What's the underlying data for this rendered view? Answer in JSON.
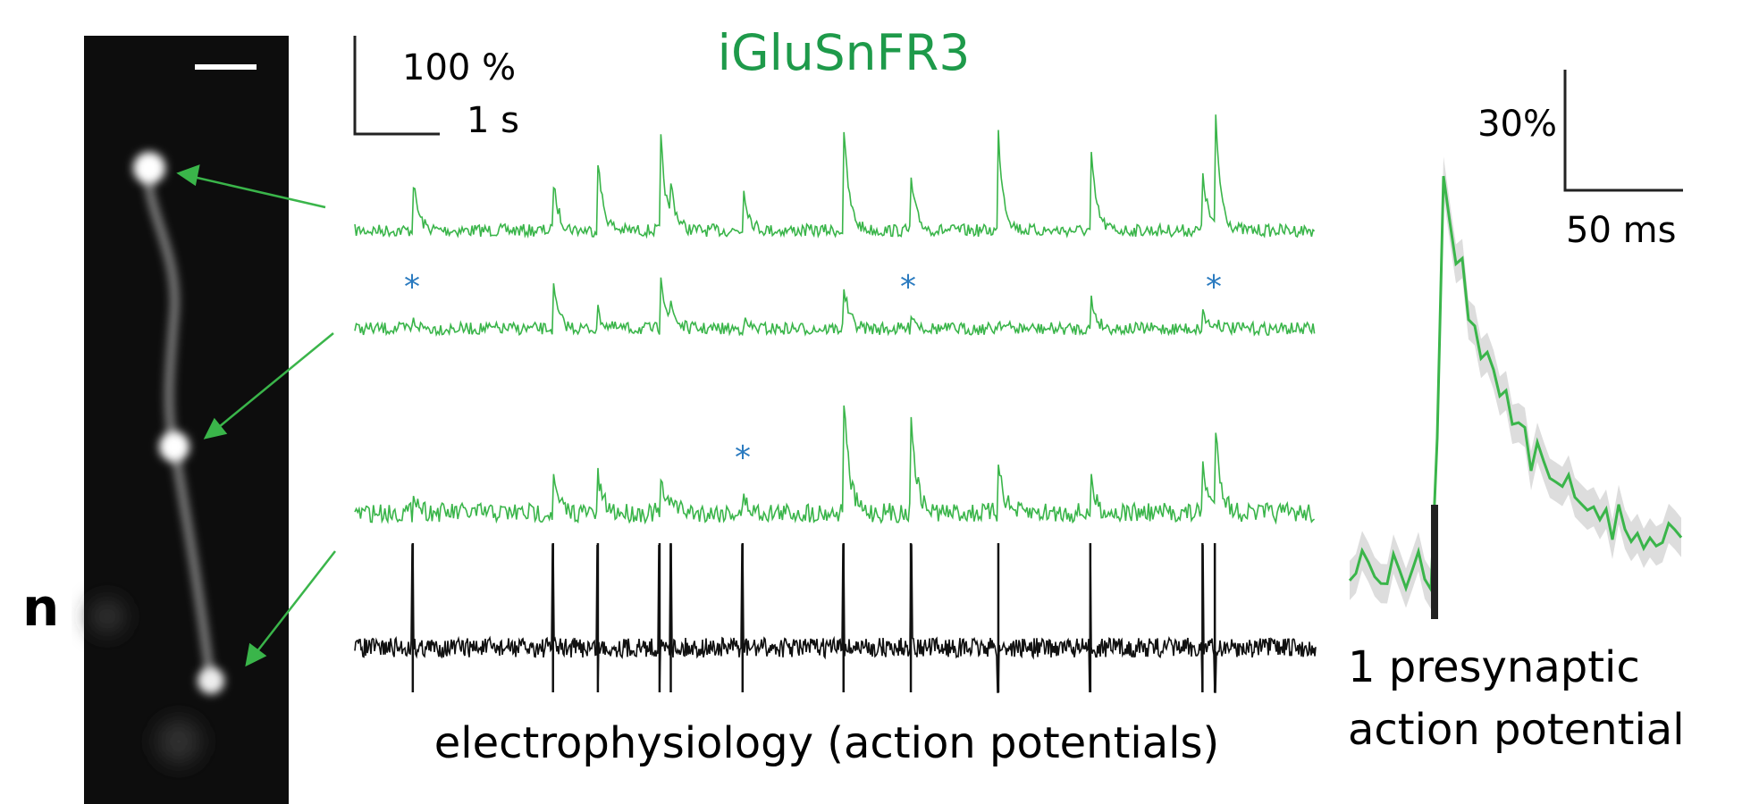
{
  "panel_label": "n",
  "title": "iGluSnFR3",
  "scale_bar_left": {
    "vertical": "100 %",
    "horizontal": "1 s"
  },
  "scale_bar_right": {
    "vertical": "30%",
    "horizontal": "50 ms"
  },
  "asterisks": [
    "*",
    "*",
    "*",
    "*"
  ],
  "trace_caption": "electrophysiology (action potentials)",
  "average_caption": [
    "1 presynaptic",
    "action potential"
  ]
}
